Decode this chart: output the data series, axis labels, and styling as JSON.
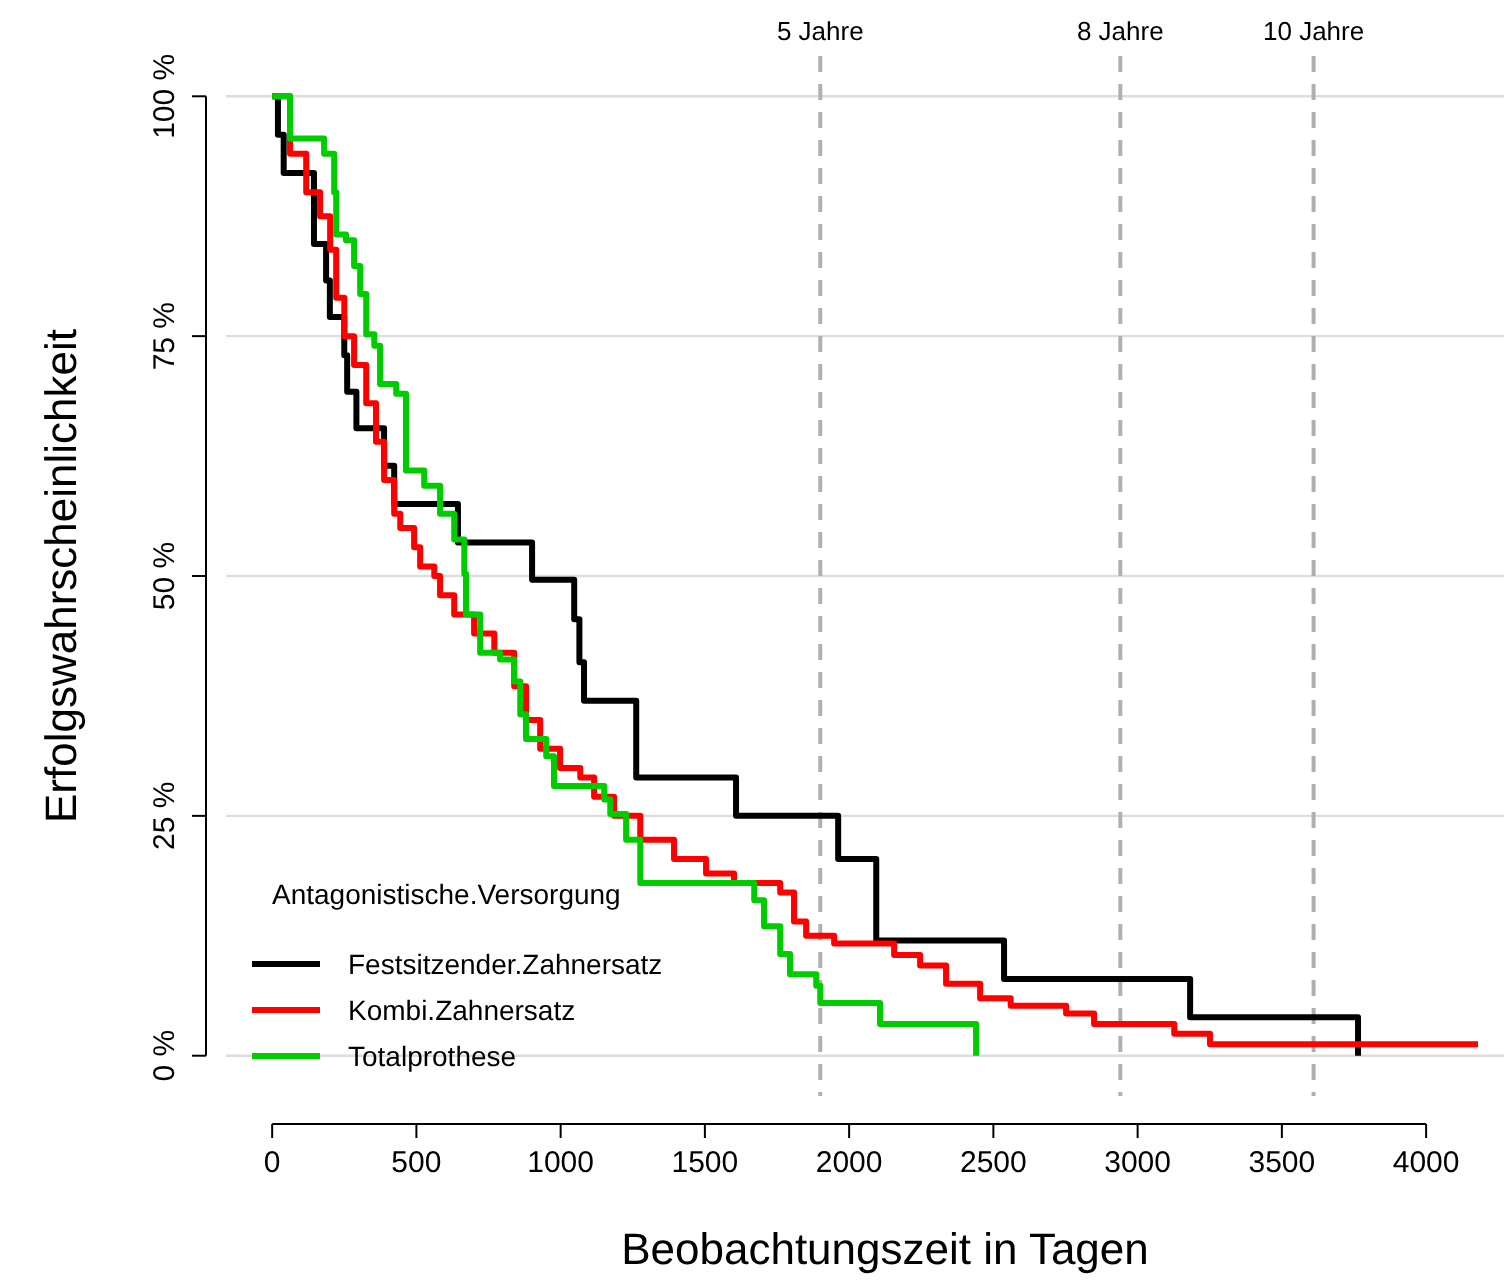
{
  "chart_data": {
    "type": "step",
    "xlabel": "Beobachtungszeit in Tagen",
    "ylabel": "Erfolgswahrscheinlichkeit",
    "legend_title": "Antagonistische.Versorgung",
    "legend": "bottom left",
    "grid": "y",
    "line_style": "solid",
    "xlim": [
      -160,
      4270
    ],
    "xticks": [
      0,
      500,
      1000,
      1500,
      2000,
      2500,
      3000,
      3500,
      4000
    ],
    "ylim": [
      -4.2,
      104.2
    ],
    "yticks": [
      {
        "value": 0,
        "label": "0 %"
      },
      {
        "value": 25,
        "label": "25 %"
      },
      {
        "value": 50,
        "label": "50 %"
      },
      {
        "value": 75,
        "label": "75 %"
      },
      {
        "value": 100,
        "label": "100 %"
      }
    ],
    "ref_lines": [
      {
        "axis": "x",
        "value": 1900,
        "label": "5 Jahre",
        "color": "#b0b0b0",
        "line_style": "dashed"
      },
      {
        "axis": "x",
        "value": 2940,
        "label": "8 Jahre",
        "color": "#b0b0b0",
        "line_style": "dashed"
      },
      {
        "axis": "x",
        "value": 3610,
        "label": "10 Jahre",
        "color": "#b0b0b0",
        "line_style": "dashed"
      }
    ],
    "series": [
      {
        "name": "Festsitzender.Zahnersatz",
        "color": "#000000",
        "x": [
          0,
          20,
          40,
          145,
          187,
          200,
          250,
          260,
          292,
          388,
          423,
          644,
          901,
          1047,
          1065,
          1081,
          1262,
          1608,
          1962,
          2094,
          2537,
          3182,
          3764
        ],
        "values": [
          100,
          96,
          92,
          84.6,
          80.8,
          77,
          73,
          69.2,
          65.4,
          61.5,
          57.5,
          53.5,
          49.6,
          45.5,
          41,
          37,
          29,
          25,
          20.5,
          12,
          8,
          4,
          0
        ]
      },
      {
        "name": "Kombi.Zahnersatz",
        "color": "#ff0000",
        "x": [
          0,
          62,
          118,
          166,
          201,
          222,
          250,
          284,
          326,
          360,
          388,
          423,
          444,
          492,
          513,
          562,
          582,
          631,
          700,
          770,
          839,
          880,
          929,
          998,
          1068,
          1116,
          1185,
          1276,
          1393,
          1504,
          1601,
          1761,
          1809,
          1851,
          1948,
          2156,
          2246,
          2336,
          2454,
          2560,
          2752,
          2849,
          3127,
          3251,
          4180
        ],
        "values": [
          100,
          94,
          90,
          87.5,
          84,
          79,
          75,
          72,
          68,
          64,
          60,
          56.5,
          55,
          53,
          51,
          50,
          48,
          46,
          44,
          42,
          38.5,
          35,
          32,
          30,
          29,
          27,
          25,
          22.5,
          20.5,
          19,
          18,
          17,
          14,
          12.5,
          11.7,
          10.5,
          9.4,
          7.5,
          6,
          5.2,
          4.4,
          3.3,
          2.3,
          1.2,
          1.2
        ]
      },
      {
        "name": "Totalprothese",
        "color": "#00cc00",
        "x": [
          0,
          62,
          180,
          215,
          222,
          256,
          284,
          305,
          326,
          354,
          374,
          430,
          464,
          527,
          582,
          631,
          666,
          672,
          721,
          790,
          839,
          860,
          880,
          950,
          977,
          1151,
          1172,
          1227,
          1276,
          1671,
          1705,
          1761,
          1795,
          1886,
          1900,
          2107,
          2440
        ],
        "values": [
          100,
          95.6,
          94,
          90,
          85.6,
          85,
          82.3,
          79.4,
          75.2,
          74,
          70,
          69,
          61,
          59.4,
          56.5,
          53.8,
          50.2,
          46,
          42,
          41.3,
          39,
          35.6,
          33,
          31.2,
          28.1,
          26.7,
          25.2,
          22.5,
          18,
          16.2,
          13.5,
          10.6,
          8.5,
          7.3,
          5.5,
          3.3,
          0
        ]
      }
    ]
  }
}
